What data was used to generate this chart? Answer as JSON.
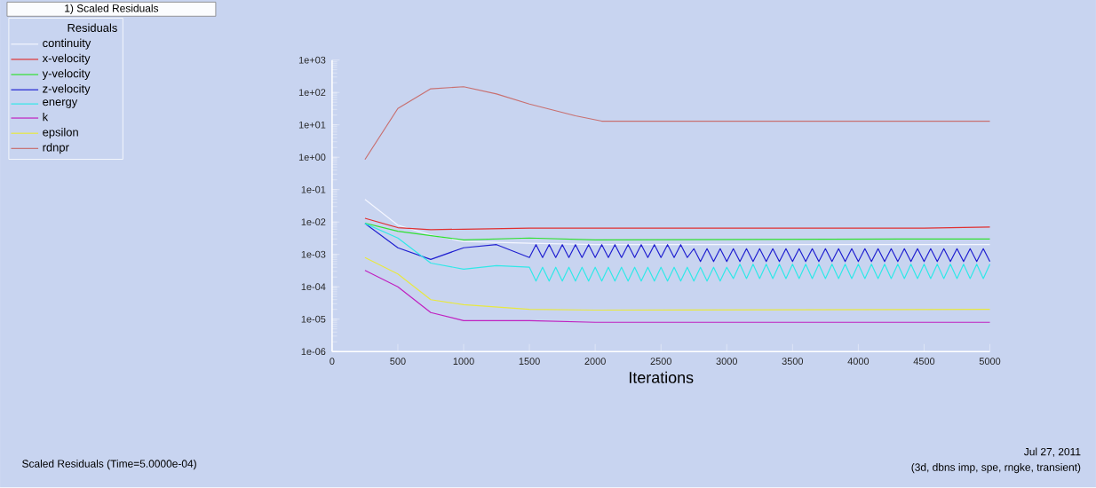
{
  "chart_data": {
    "type": "line",
    "xlabel": "Iterations",
    "legend_title": "Residuals",
    "legend": "top left",
    "log": "y",
    "grid": false,
    "marker": "none",
    "line_style": "solid",
    "xlim": [
      0,
      5000
    ],
    "xticks": [
      0,
      500,
      1000,
      1500,
      2000,
      2500,
      3000,
      3500,
      4000,
      4500,
      5000
    ],
    "ylim": [
      1e-06,
      1000
    ],
    "yticks": [
      {
        "value": 1e-06,
        "label": "1e-06"
      },
      {
        "value": 1e-05,
        "label": "1e-05"
      },
      {
        "value": 0.0001,
        "label": "1e-04"
      },
      {
        "value": 0.001,
        "label": "1e-03"
      },
      {
        "value": 0.01,
        "label": "1e-02"
      },
      {
        "value": 0.1,
        "label": "1e-01"
      },
      {
        "value": 1,
        "label": "1e+00"
      },
      {
        "value": 10,
        "label": "1e+01"
      },
      {
        "value": 100,
        "label": "1e+02"
      },
      {
        "value": 1000,
        "label": "1e+03"
      }
    ],
    "annotations": [
      "1) Scaled Residuals",
      "Scaled Residuals  (Time=5.0000e-04)",
      "Jul 27, 2011",
      "(3d, dbns imp, spe, rngke, transient)"
    ],
    "series": [
      {
        "name": "continuity",
        "color": "#f4f6ff",
        "x": [
          250,
          500,
          750,
          1000,
          1500,
          2000,
          5000
        ],
        "values": [
          0.05,
          0.008,
          0.004,
          0.0025,
          0.0022,
          0.002,
          0.002
        ]
      },
      {
        "name": "x-velocity",
        "color": "#e03030",
        "x": [
          250,
          500,
          750,
          1000,
          1500,
          2000,
          4500,
          5000
        ],
        "values": [
          0.013,
          0.0067,
          0.0058,
          0.006,
          0.0065,
          0.0065,
          0.0065,
          0.007
        ]
      },
      {
        "name": "y-velocity",
        "color": "#30e030",
        "x": [
          250,
          500,
          1000,
          1500,
          2000,
          4500,
          5000
        ],
        "values": [
          0.0092,
          0.0052,
          0.0028,
          0.0032,
          0.0028,
          0.003,
          0.003
        ]
      },
      {
        "name": "z-velocity",
        "color": "#2020d0",
        "x": [
          250,
          500,
          750,
          1000,
          1250,
          1500,
          1550,
          1600,
          1650,
          1700,
          1750,
          1800,
          1850,
          1900,
          1950,
          2000,
          2050,
          2100,
          2150,
          2200,
          2250,
          2300,
          2350,
          2400,
          2450,
          2500,
          2550,
          2600,
          2650,
          2700,
          2750,
          2800,
          2850,
          2900,
          2950,
          3000,
          3050,
          3100,
          3150,
          3200,
          3250,
          3300,
          3350,
          3400,
          3450,
          3500,
          3550,
          3600,
          3650,
          3700,
          3750,
          3800,
          3850,
          3900,
          3950,
          4000,
          4050,
          4100,
          4150,
          4200,
          4250,
          4300,
          4350,
          4400,
          4450,
          4500,
          4550,
          4600,
          4650,
          4700,
          4750,
          4800,
          4850,
          4900,
          4950,
          5000
        ],
        "values": [
          0.009,
          0.0016,
          0.0007,
          0.0016,
          0.002,
          0.0008,
          0.002,
          0.0008,
          0.002,
          0.0008,
          0.002,
          0.0008,
          0.002,
          0.0008,
          0.002,
          0.0008,
          0.002,
          0.0008,
          0.002,
          0.0008,
          0.002,
          0.0008,
          0.002,
          0.0008,
          0.002,
          0.0008,
          0.002,
          0.0008,
          0.002,
          0.0008,
          0.0015,
          0.0006,
          0.0015,
          0.0006,
          0.0015,
          0.0006,
          0.0015,
          0.0006,
          0.0015,
          0.0006,
          0.0015,
          0.0006,
          0.0015,
          0.0006,
          0.0015,
          0.0006,
          0.0015,
          0.0006,
          0.0015,
          0.0006,
          0.0015,
          0.0006,
          0.0015,
          0.0006,
          0.0015,
          0.0006,
          0.0015,
          0.0006,
          0.0015,
          0.0006,
          0.0015,
          0.0006,
          0.0015,
          0.0006,
          0.0015,
          0.0006,
          0.0015,
          0.0006,
          0.0015,
          0.0006,
          0.0015,
          0.0006,
          0.0015,
          0.0006,
          0.0015,
          0.0006
        ]
      },
      {
        "name": "energy",
        "color": "#30e8e8",
        "x": [
          250,
          500,
          750,
          1000,
          1250,
          1500,
          1550,
          1600,
          1650,
          1700,
          1750,
          1800,
          1850,
          1900,
          1950,
          2000,
          2050,
          2100,
          2150,
          2200,
          2250,
          2300,
          2350,
          2400,
          2450,
          2500,
          2550,
          2600,
          2650,
          2700,
          2750,
          2800,
          2850,
          2900,
          2950,
          3000,
          3050,
          3100,
          3150,
          3200,
          3250,
          3300,
          3350,
          3400,
          3450,
          3500,
          3550,
          3600,
          3650,
          3700,
          3750,
          3800,
          3850,
          3900,
          3950,
          4000,
          4050,
          4100,
          4150,
          4200,
          4250,
          4300,
          4350,
          4400,
          4450,
          4500,
          4550,
          4600,
          4650,
          4700,
          4750,
          4800,
          4850,
          4900,
          4950,
          5000
        ],
        "values": [
          0.009,
          0.0032,
          0.00054,
          0.00035,
          0.00045,
          0.0004,
          0.00015,
          0.0004,
          0.00015,
          0.0004,
          0.00015,
          0.0004,
          0.00015,
          0.0004,
          0.00015,
          0.0004,
          0.00015,
          0.0004,
          0.00015,
          0.0004,
          0.00015,
          0.0004,
          0.00015,
          0.0004,
          0.00015,
          0.0004,
          0.00015,
          0.0004,
          0.00015,
          0.0004,
          0.00015,
          0.0004,
          0.00015,
          0.0004,
          0.00015,
          0.0004,
          0.00018,
          0.0005,
          0.00018,
          0.0005,
          0.00018,
          0.0005,
          0.00018,
          0.0005,
          0.00018,
          0.0005,
          0.00018,
          0.0005,
          0.00018,
          0.0005,
          0.00018,
          0.0005,
          0.00018,
          0.0005,
          0.00018,
          0.0005,
          0.00018,
          0.0005,
          0.00018,
          0.0005,
          0.00018,
          0.0005,
          0.00018,
          0.0005,
          0.00018,
          0.0005,
          0.00018,
          0.0005,
          0.00018,
          0.0005,
          0.00018,
          0.0005,
          0.00018,
          0.0005,
          0.00018,
          0.0005
        ]
      },
      {
        "name": "k",
        "color": "#c020c0",
        "x": [
          250,
          500,
          750,
          1000,
          1500,
          2000,
          5000
        ],
        "values": [
          0.00032,
          0.0001,
          1.6e-05,
          9e-06,
          9e-06,
          8e-06,
          8e-06
        ]
      },
      {
        "name": "epsilon",
        "color": "#e8e840",
        "x": [
          250,
          500,
          750,
          1000,
          1500,
          2000,
          5000
        ],
        "values": [
          0.0008,
          0.00025,
          4e-05,
          2.8e-05,
          2e-05,
          1.9e-05,
          2e-05
        ]
      },
      {
        "name": "rdnpr",
        "color": "#c87070",
        "x": [
          250,
          500,
          750,
          1000,
          1250,
          1500,
          1850,
          2050,
          2500,
          5000
        ],
        "values": [
          0.85,
          32,
          130,
          150,
          90,
          44,
          19,
          13,
          13,
          13
        ]
      }
    ]
  }
}
